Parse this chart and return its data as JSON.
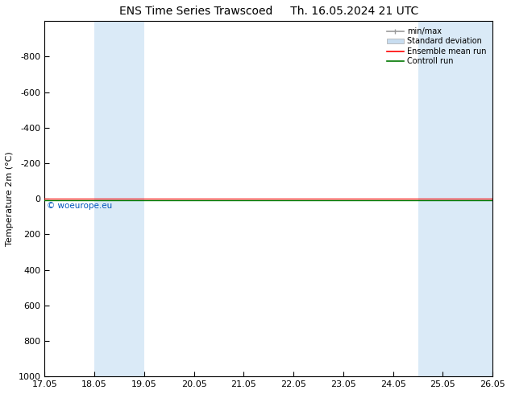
{
  "title": "ENS Time Series Trawscoed",
  "title_right": "Th. 16.05.2024 21 UTC",
  "ylabel": "Temperature 2m (°C)",
  "background_color": "#ffffff",
  "plot_bg_color": "#ffffff",
  "shaded_bands_color": "#daeaf7",
  "x_tick_labels": [
    "17.05",
    "18.05",
    "19.05",
    "20.05",
    "21.05",
    "22.05",
    "23.05",
    "24.05",
    "25.05",
    "26.05"
  ],
  "x_min": 0,
  "x_max": 9,
  "y_min": -1000,
  "y_max": 1000,
  "y_ticks": [
    -800,
    -600,
    -400,
    -200,
    0,
    200,
    400,
    600,
    800,
    1000
  ],
  "shaded_bands_x": [
    [
      1.0,
      1.5
    ],
    [
      1.5,
      2.0
    ],
    [
      7.5,
      8.0
    ],
    [
      8.0,
      9.0
    ]
  ],
  "ensemble_mean_y": 0,
  "control_run_y": 0,
  "watermark": "© woeurope.eu",
  "legend_entries": [
    "min/max",
    "Standard deviation",
    "Ensemble mean run",
    "Controll run"
  ],
  "title_fontsize": 10,
  "axis_label_fontsize": 8,
  "tick_fontsize": 8,
  "legend_fontsize": 7
}
